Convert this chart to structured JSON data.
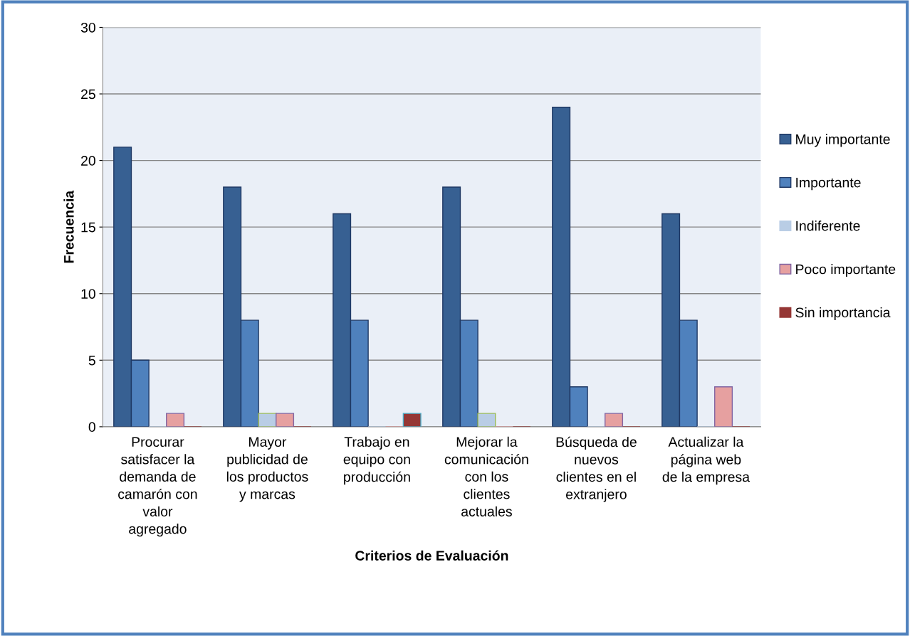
{
  "chart_data": {
    "type": "bar",
    "xlabel": "Criterios de Evaluación",
    "ylabel": "Frecuencia",
    "categories": [
      "Procurar\nsatisfacer la\ndemanda de\ncamarón con\nvalor\nagregado",
      "Mayor\npublicidad de\nlos productos\ny marcas",
      "Trabajo en\nequipo con\nproducción",
      "Mejorar la\ncomunicación\ncon los\nclientes\nactuales",
      "Búsqueda de\nnuevos\nclientes en el\nextranjero",
      "Actualizar la\npágina web\nde la empresa"
    ],
    "series": [
      {
        "name": "Muy importante",
        "color": "#376092",
        "values": [
          21,
          18,
          16,
          18,
          24,
          16
        ]
      },
      {
        "name": "Importante",
        "color": "#4f81bd",
        "values": [
          5,
          8,
          8,
          8,
          3,
          8
        ]
      },
      {
        "name": "Indiferente",
        "color": "#b9cde5",
        "values": [
          0,
          1,
          0,
          1,
          0,
          0
        ]
      },
      {
        "name": "Poco importante",
        "color": "#e6a0a0",
        "values": [
          1,
          1,
          0,
          0,
          1,
          3
        ]
      },
      {
        "name": "Sin importancia",
        "color": "#953735",
        "values": [
          0,
          0,
          1,
          0,
          0,
          0
        ]
      }
    ],
    "ylim": [
      0,
      30
    ],
    "yticks": [
      0,
      5,
      10,
      15,
      20,
      25,
      30
    ],
    "grid": "y",
    "legend": "right"
  }
}
